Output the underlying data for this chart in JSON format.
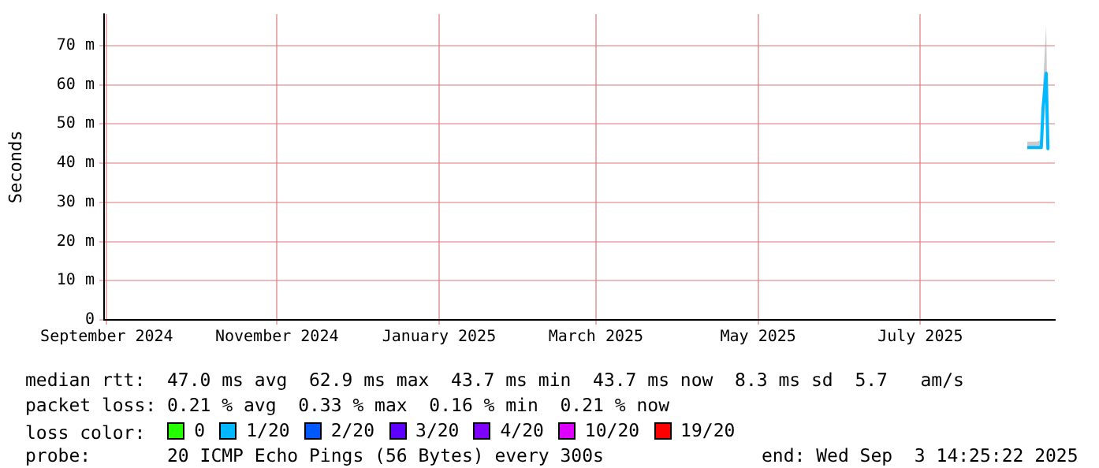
{
  "chart_data": {
    "type": "line",
    "ylabel": "Seconds",
    "x": [
      "2025-08-24T06:00",
      "2025-08-26T00:00",
      "2025-08-28T00:00",
      "2025-08-29T12:00",
      "2025-08-30T04:00",
      "2025-08-31T08:00",
      "2025-09-01T00:00",
      "2025-09-01T12:00"
    ],
    "xlim": [
      "2024-09-11T00:00",
      "2025-09-03T14:25"
    ],
    "xticks": [
      {
        "value": "2024-09-12",
        "label": "September 2024"
      },
      {
        "value": "2024-11-15",
        "label": "November 2024"
      },
      {
        "value": "2025-01-15",
        "label": "January 2025"
      },
      {
        "value": "2025-03-15",
        "label": "March 2025"
      },
      {
        "value": "2025-05-15",
        "label": "May 2025"
      },
      {
        "value": "2025-07-15",
        "label": "July 2025"
      }
    ],
    "ylim": [
      0,
      78
    ],
    "yticks": [
      0,
      {
        "value": 10,
        "label": "10 m"
      },
      {
        "value": 20,
        "label": "20 m"
      },
      {
        "value": 30,
        "label": "30 m"
      },
      {
        "value": 40,
        "label": "40 m"
      },
      {
        "value": 50,
        "label": "50 m"
      },
      {
        "value": 60,
        "label": "60 m"
      },
      {
        "value": 70,
        "label": "70 m"
      }
    ],
    "series": [
      {
        "name": "0",
        "color": "#26ff00",
        "values": [
          null,
          null,
          null,
          null,
          null,
          null,
          null,
          null
        ]
      },
      {
        "name": "1/20",
        "color": "#00b8ff",
        "values": [
          44,
          44,
          44,
          44,
          54,
          62.9,
          43.7,
          43.7
        ],
        "lower": [
          44,
          44,
          44,
          44,
          52,
          60,
          43.7,
          43.7
        ],
        "upper": [
          45.5,
          45.5,
          45.5,
          46,
          60,
          75,
          45,
          45
        ]
      },
      {
        "name": "2/20",
        "color": "#0059ff",
        "values": [
          null,
          null,
          null,
          null,
          null,
          null,
          null,
          null
        ]
      },
      {
        "name": "3/20",
        "color": "#5e00ff",
        "values": [
          null,
          null,
          null,
          null,
          null,
          null,
          null,
          null
        ]
      },
      {
        "name": "4/20",
        "color": "#7e00ff",
        "values": [
          null,
          null,
          null,
          null,
          null,
          null,
          null,
          null
        ]
      },
      {
        "name": "10/20",
        "color": "#dd00ff",
        "values": [
          null,
          null,
          null,
          null,
          null,
          null,
          null,
          null
        ]
      },
      {
        "name": "19/20",
        "color": "#ff0000",
        "values": [
          null,
          null,
          null,
          null,
          null,
          null,
          null,
          null
        ]
      }
    ],
    "grid": true,
    "legend": "bottom",
    "marker": "none",
    "line_style": "solid",
    "annotations": [
      "median rtt:  47.0 ms avg  62.9 ms max  43.7 ms min  43.7 ms now  8.3 ms sd  5.7   am/s",
      "packet loss: 0.21 % avg  0.33 % max  0.16 % min  0.21 % now",
      "loss color:",
      "probe:       20 ICMP Echo Pings (56 Bytes) every 300s",
      "end: Wed Sep  3 14:25:22 2025"
    ]
  }
}
